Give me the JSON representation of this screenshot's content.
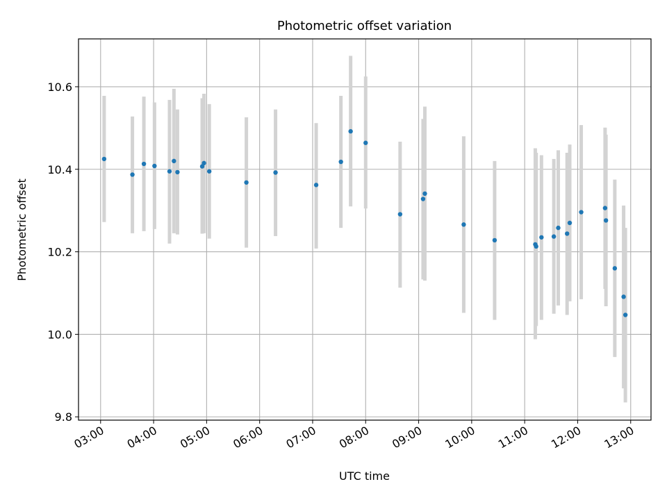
{
  "chart_data": {
    "type": "scatter",
    "title": "Photometric offset variation",
    "xlabel": "UTC time",
    "ylabel": "Photometric offset",
    "xlim": [
      "02:35",
      "13:23"
    ],
    "ylim": [
      9.792,
      10.716
    ],
    "grid": true,
    "x_ticks": [
      "03:00",
      "04:00",
      "05:00",
      "06:00",
      "07:00",
      "08:00",
      "09:00",
      "10:00",
      "11:00",
      "12:00",
      "13:00"
    ],
    "y_ticks": [
      9.8,
      10.0,
      10.2,
      10.4,
      10.6
    ],
    "marker_color": "#1f77b4",
    "errorbar_color": "#d3d3d3",
    "series": [
      {
        "points": [
          {
            "x": "03:04",
            "y": 10.425,
            "err_low": 10.272,
            "err_high": 10.578
          },
          {
            "x": "03:36",
            "y": 10.387,
            "err_low": 10.245,
            "err_high": 10.528
          },
          {
            "x": "03:49",
            "y": 10.413,
            "err_low": 10.25,
            "err_high": 10.576
          },
          {
            "x": "04:01",
            "y": 10.408,
            "err_low": 10.255,
            "err_high": 10.562
          },
          {
            "x": "04:18",
            "y": 10.395,
            "err_low": 10.22,
            "err_high": 10.568
          },
          {
            "x": "04:23",
            "y": 10.42,
            "err_low": 10.245,
            "err_high": 10.595
          },
          {
            "x": "04:27",
            "y": 10.393,
            "err_low": 10.242,
            "err_high": 10.545
          },
          {
            "x": "04:55",
            "y": 10.407,
            "err_low": 10.244,
            "err_high": 10.572
          },
          {
            "x": "04:57",
            "y": 10.415,
            "err_low": 10.245,
            "err_high": 10.583
          },
          {
            "x": "05:03",
            "y": 10.395,
            "err_low": 10.232,
            "err_high": 10.558
          },
          {
            "x": "05:45",
            "y": 10.368,
            "err_low": 10.21,
            "err_high": 10.526
          },
          {
            "x": "06:18",
            "y": 10.392,
            "err_low": 10.238,
            "err_high": 10.545
          },
          {
            "x": "07:04",
            "y": 10.362,
            "err_low": 10.208,
            "err_high": 10.512
          },
          {
            "x": "07:32",
            "y": 10.418,
            "err_low": 10.258,
            "err_high": 10.578
          },
          {
            "x": "07:43",
            "y": 10.492,
            "err_low": 10.31,
            "err_high": 10.675
          },
          {
            "x": "08:00",
            "y": 10.464,
            "err_low": 10.305,
            "err_high": 10.625
          },
          {
            "x": "08:39",
            "y": 10.291,
            "err_low": 10.113,
            "err_high": 10.467
          },
          {
            "x": "09:05",
            "y": 10.328,
            "err_low": 10.133,
            "err_high": 10.522
          },
          {
            "x": "09:07",
            "y": 10.341,
            "err_low": 10.13,
            "err_high": 10.552
          },
          {
            "x": "09:51",
            "y": 10.266,
            "err_low": 10.052,
            "err_high": 10.48
          },
          {
            "x": "10:26",
            "y": 10.228,
            "err_low": 10.035,
            "err_high": 10.42
          },
          {
            "x": "11:12",
            "y": 10.218,
            "err_low": 9.988,
            "err_high": 10.451
          },
          {
            "x": "11:13",
            "y": 10.213,
            "err_low": 10.02,
            "err_high": 10.44
          },
          {
            "x": "11:19",
            "y": 10.235,
            "err_low": 10.035,
            "err_high": 10.434
          },
          {
            "x": "11:33",
            "y": 10.237,
            "err_low": 10.05,
            "err_high": 10.425
          },
          {
            "x": "11:38",
            "y": 10.258,
            "err_low": 10.07,
            "err_high": 10.446
          },
          {
            "x": "11:48",
            "y": 10.244,
            "err_low": 10.047,
            "err_high": 10.44
          },
          {
            "x": "11:51",
            "y": 10.27,
            "err_low": 10.08,
            "err_high": 10.46
          },
          {
            "x": "12:04",
            "y": 10.296,
            "err_low": 10.085,
            "err_high": 10.507
          },
          {
            "x": "12:31",
            "y": 10.306,
            "err_low": 10.11,
            "err_high": 10.501
          },
          {
            "x": "12:32",
            "y": 10.276,
            "err_low": 10.068,
            "err_high": 10.484
          },
          {
            "x": "12:42",
            "y": 10.16,
            "err_low": 9.945,
            "err_high": 10.375
          },
          {
            "x": "12:52",
            "y": 10.091,
            "err_low": 9.869,
            "err_high": 10.312
          },
          {
            "x": "12:54",
            "y": 10.047,
            "err_low": 9.835,
            "err_high": 10.258
          }
        ]
      }
    ]
  }
}
